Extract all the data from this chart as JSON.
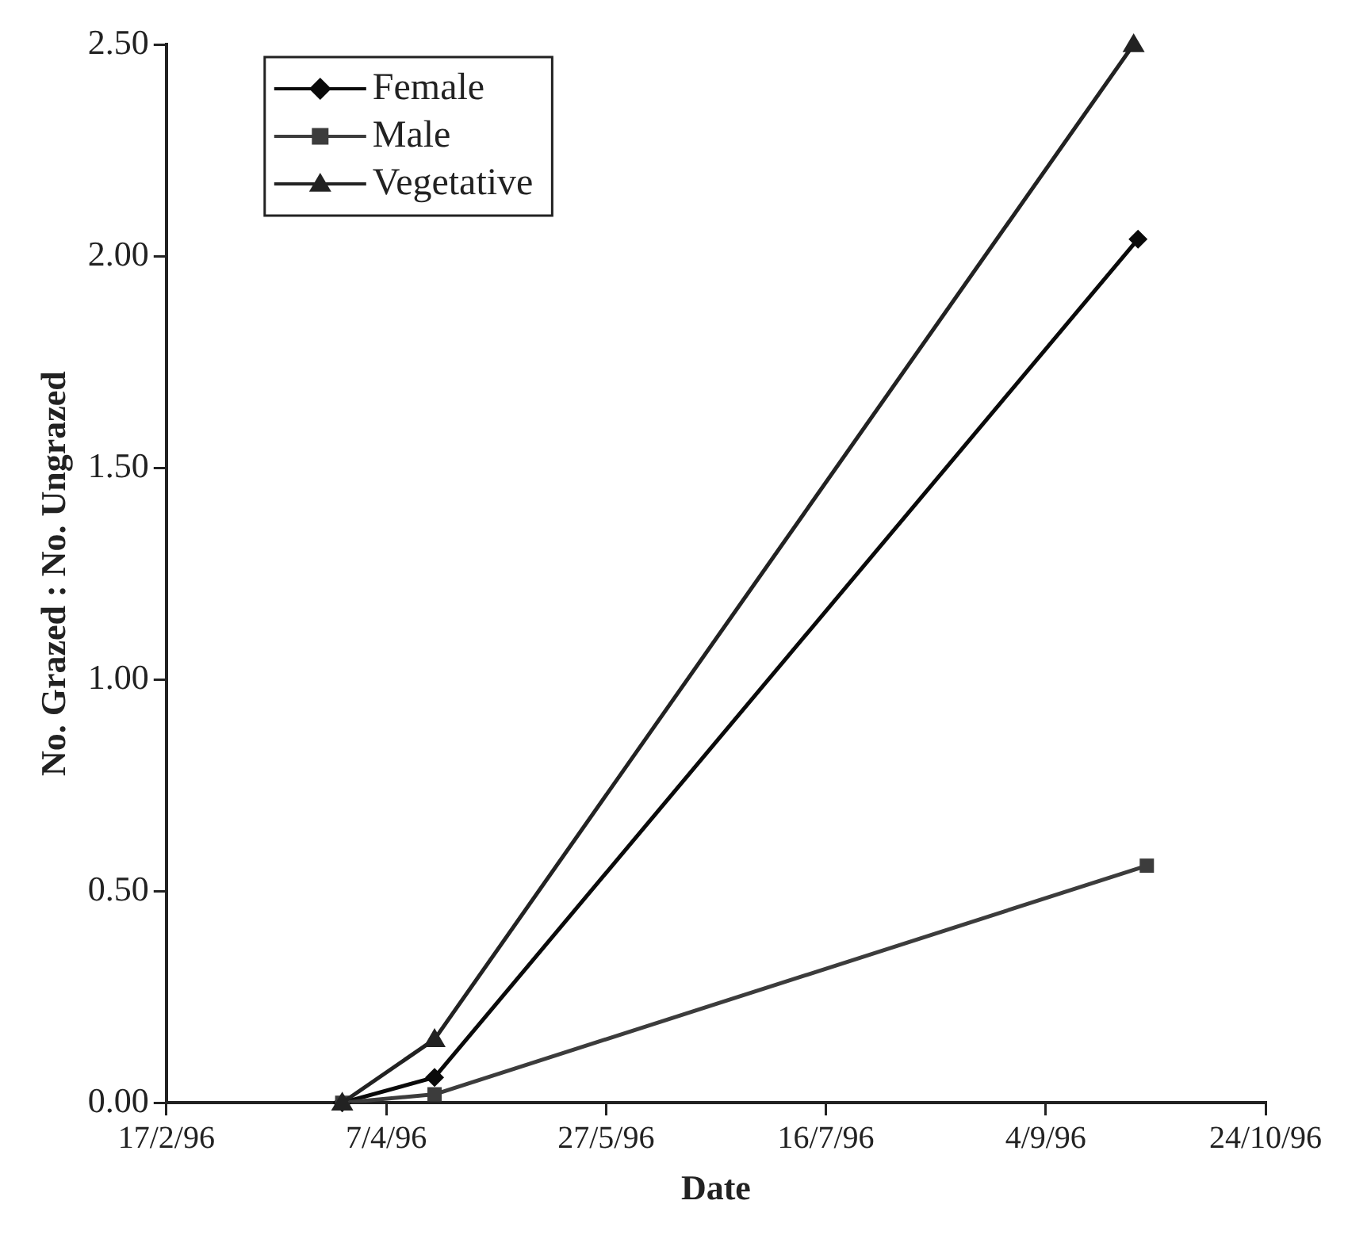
{
  "chart_data": {
    "type": "line",
    "xlabel": "Date",
    "ylabel": "No. Grazed : No. Ungrazed",
    "xlim": [
      "1996-02-17",
      "1996-10-24"
    ],
    "xticks": [
      {
        "value": "1996-02-17",
        "label": "17/2/96"
      },
      {
        "value": "1996-04-07",
        "label": "7/4/96"
      },
      {
        "value": "1996-05-27",
        "label": "27/5/96"
      },
      {
        "value": "1996-07-16",
        "label": "16/7/96"
      },
      {
        "value": "1996-09-04",
        "label": "4/9/96"
      },
      {
        "value": "1996-10-24",
        "label": "24/10/96"
      }
    ],
    "ylim": [
      0,
      2.5
    ],
    "yticks": [
      {
        "value": 0,
        "label": "0.00"
      },
      {
        "value": 0.5,
        "label": "0.50"
      },
      {
        "value": 1,
        "label": "1.00"
      },
      {
        "value": 1.5,
        "label": "1.50"
      },
      {
        "value": 2,
        "label": "2.00"
      },
      {
        "value": 2.5,
        "label": "2.50"
      }
    ],
    "grid": false,
    "legend": "top left",
    "line_style": "solid",
    "series": [
      {
        "name": "Female",
        "color": "#0a0a0a",
        "marker": "diamond",
        "x": [
          "1996-03-28",
          "1996-04-18",
          "1996-09-25"
        ],
        "values": [
          0,
          0.06,
          2.04
        ]
      },
      {
        "name": "Male",
        "color": "#3c3c3c",
        "marker": "square",
        "x": [
          "1996-03-28",
          "1996-04-18",
          "1996-09-27"
        ],
        "values": [
          0,
          0.02,
          0.56
        ]
      },
      {
        "name": "Vegetative",
        "color": "#222222",
        "marker": "triangle",
        "x": [
          "1996-03-28",
          "1996-04-18",
          "1996-09-24"
        ],
        "values": [
          0,
          0.15,
          2.5
        ]
      }
    ]
  }
}
